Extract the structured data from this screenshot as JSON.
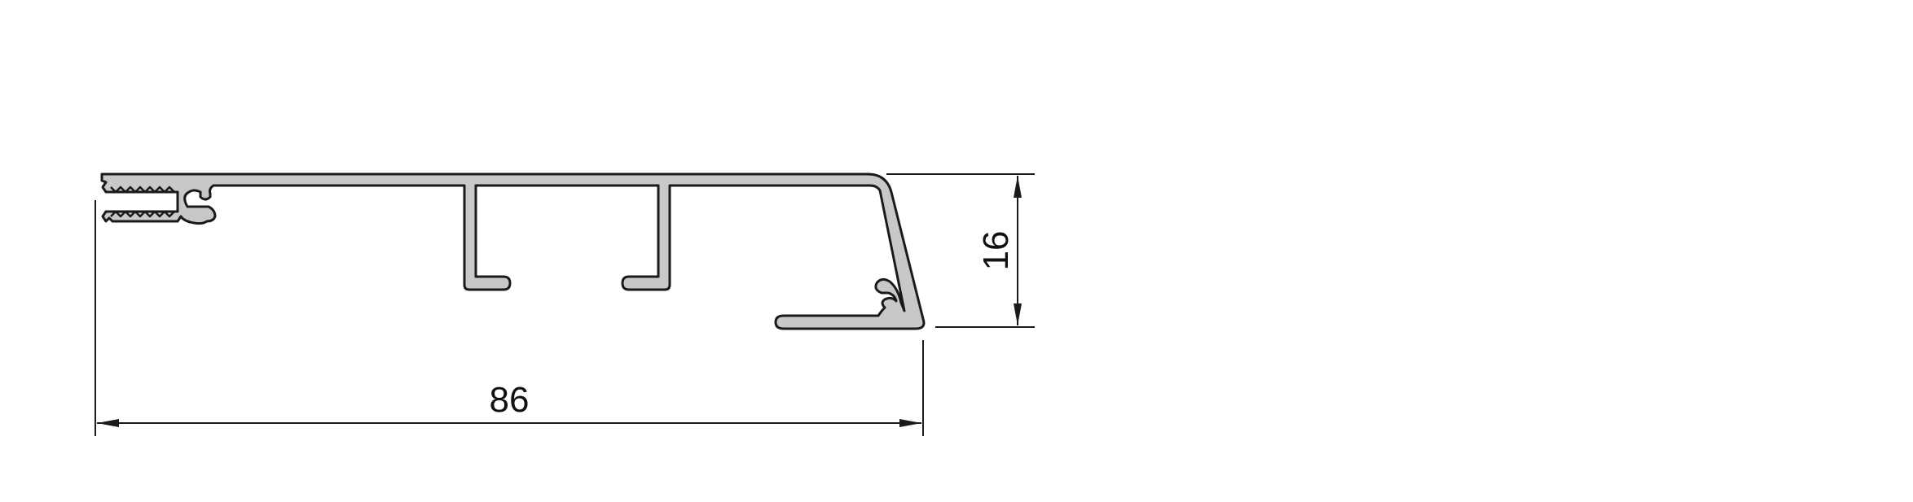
{
  "drawing": {
    "title": "",
    "width_dimension": "86",
    "height_dimension": "16",
    "profile_fill": "#c8c8c8",
    "line_color": "#1a1a1a"
  }
}
